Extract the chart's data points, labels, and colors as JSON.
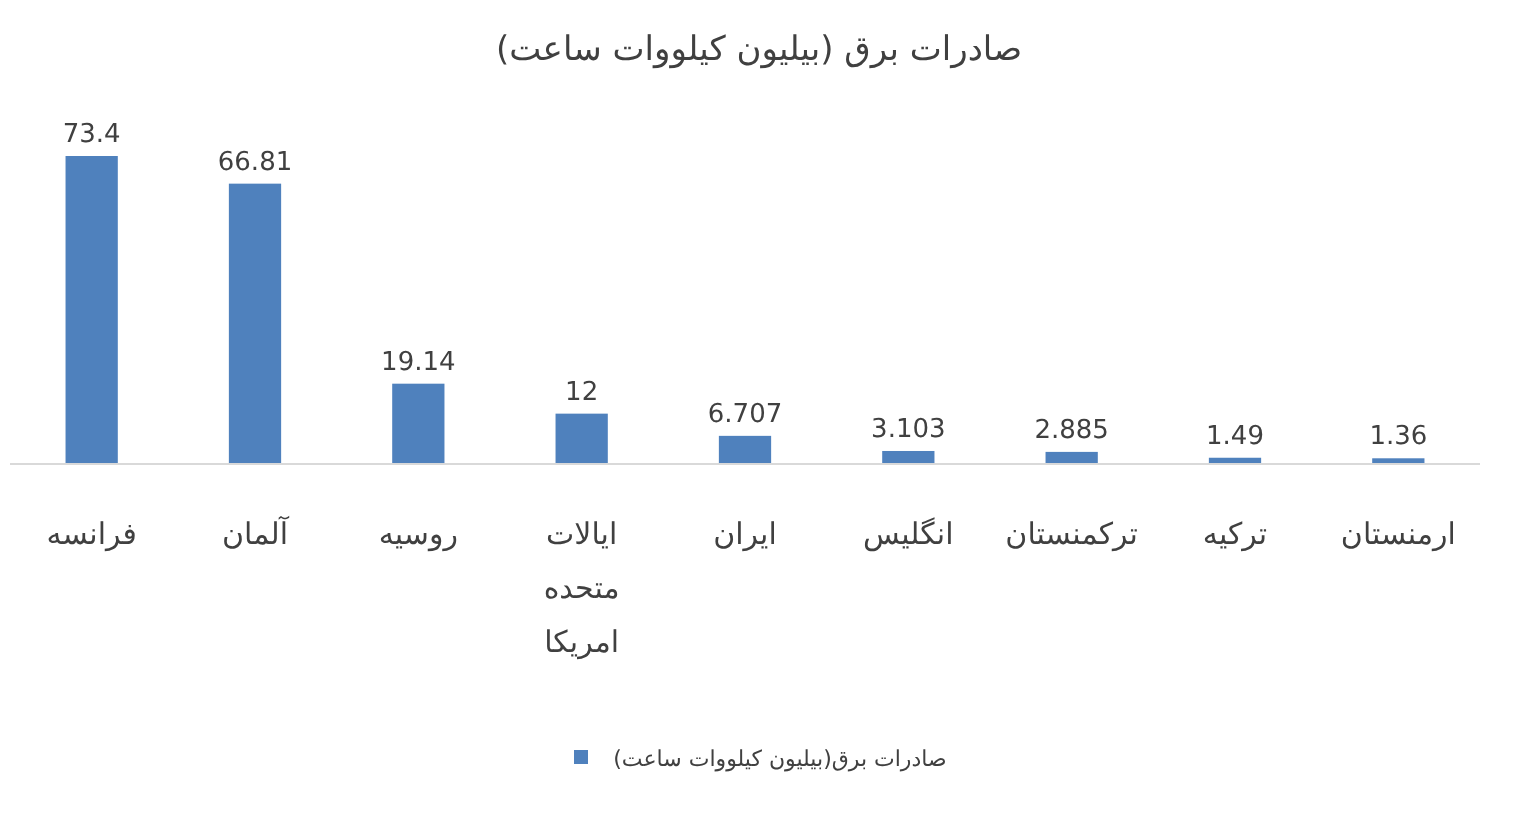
{
  "chart_data": {
    "type": "bar",
    "title": "صادرات برق (بیلیون کیلووات ساعت)",
    "categories": [
      "فرانسه",
      "آلمان",
      "روسیه",
      "ایالات متحده امریکا",
      "ایران",
      "انگلیس",
      "ترکمنستان",
      "ترکیه",
      "ارمنستان"
    ],
    "series": [
      {
        "name": "صادرات برق(بیلیون کیلووات ساعت)",
        "color": "#4f81bd",
        "values": [
          73.4,
          66.81,
          19.14,
          12,
          6.707,
          3.103,
          2.885,
          1.49,
          1.36
        ]
      }
    ],
    "data_labels": true,
    "legend": "bottom",
    "grid": false
  }
}
